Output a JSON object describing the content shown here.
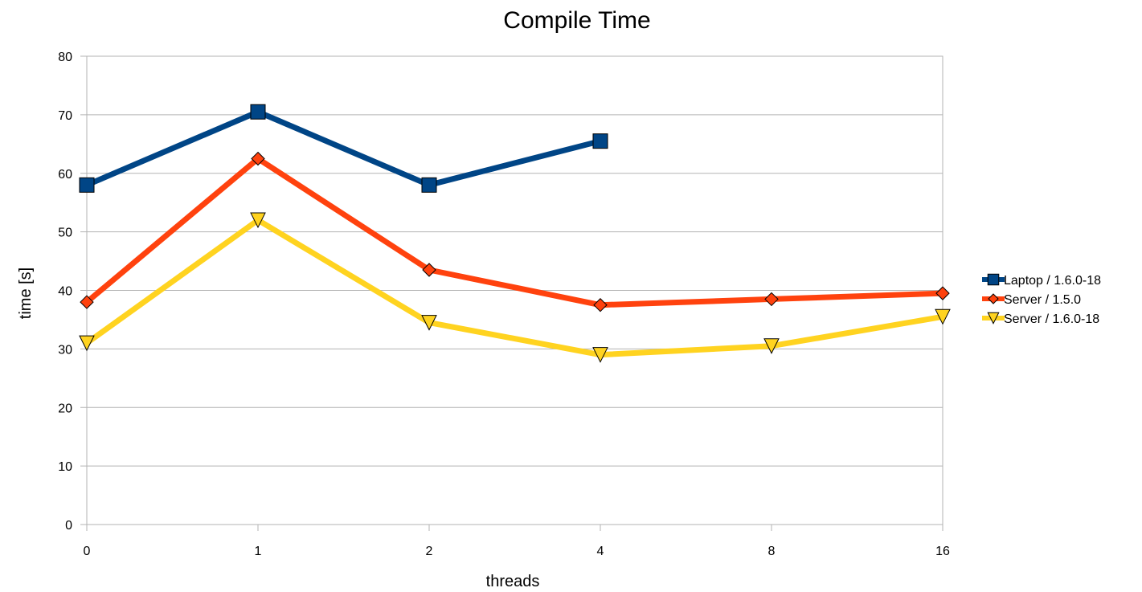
{
  "chart_data": {
    "type": "line",
    "title": "Compile Time",
    "xlabel": "threads",
    "ylabel": "time [s]",
    "categories": [
      "0",
      "1",
      "2",
      "4",
      "8",
      "16"
    ],
    "ylim": [
      0,
      80
    ],
    "yticks": [
      "0",
      "10",
      "20",
      "30",
      "40",
      "50",
      "60",
      "70",
      "80"
    ],
    "grid": true,
    "legend_position": "right",
    "series": [
      {
        "name": "Laptop / 1.6.0-18",
        "values": [
          58,
          70.5,
          58,
          65.5,
          null,
          null
        ],
        "color": "#004586",
        "marker": "square"
      },
      {
        "name": "Server / 1.5.0",
        "values": [
          38,
          62.5,
          43.5,
          37.5,
          38.5,
          39.5
        ],
        "color": "#ff420e",
        "marker": "diamond"
      },
      {
        "name": "Server / 1.6.0-18",
        "values": [
          31,
          52,
          34.5,
          29,
          30.5,
          35.5
        ],
        "color": "#ffd320",
        "marker": "triangle-down"
      }
    ]
  }
}
